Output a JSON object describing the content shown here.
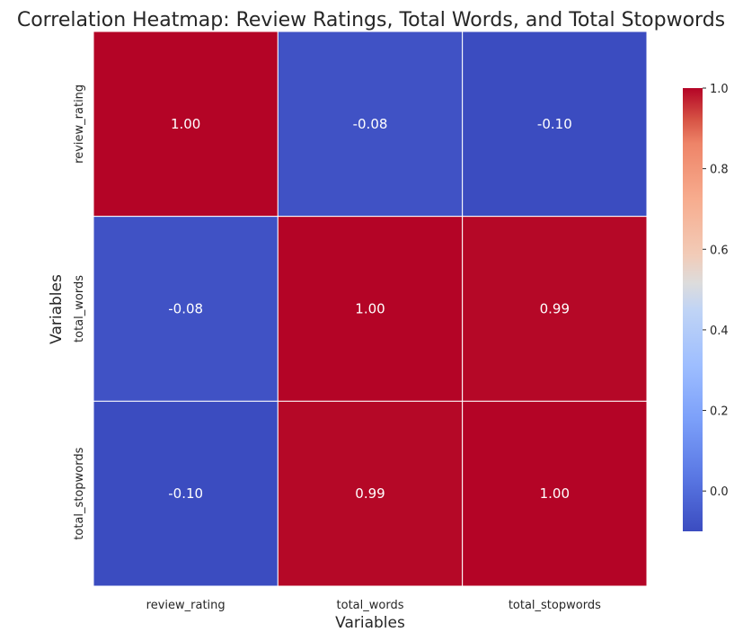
{
  "chart_data": {
    "type": "heatmap",
    "title": "Correlation Heatmap: Review Ratings, Total Words, and Total Stopwords",
    "xlabel": "Variables",
    "ylabel": "Variables",
    "x_categories": [
      "review_rating",
      "total_words",
      "total_stopwords"
    ],
    "y_categories": [
      "review_rating",
      "total_words",
      "total_stopwords"
    ],
    "values": [
      [
        1.0,
        -0.08,
        -0.1
      ],
      [
        -0.08,
        1.0,
        0.99
      ],
      [
        -0.1,
        0.99,
        1.0
      ]
    ],
    "annotation_format": "0.00",
    "colormap": "coolwarm",
    "colorbar": {
      "range": [
        -0.1,
        1.0
      ],
      "ticks": [
        0.0,
        0.2,
        0.4,
        0.6,
        0.8,
        1.0
      ],
      "tick_labels": [
        "0.0",
        "0.2",
        "0.4",
        "0.6",
        "0.8",
        "1.0"
      ]
    },
    "cell_border_color": "#ffffff",
    "grid": false
  }
}
